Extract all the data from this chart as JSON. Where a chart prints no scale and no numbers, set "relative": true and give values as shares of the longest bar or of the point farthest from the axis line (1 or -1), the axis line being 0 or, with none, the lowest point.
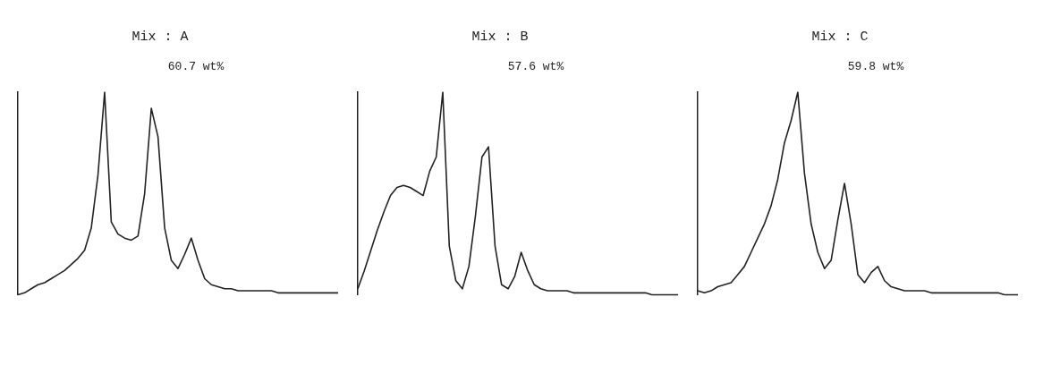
{
  "chart_data": [
    {
      "type": "line",
      "title": "Mix : A",
      "relative": true,
      "annotations": [
        "60.7 wt%"
      ],
      "marker": "none",
      "grid": false,
      "legend": false,
      "categories": [
        null,
        null,
        null,
        null,
        null,
        null,
        null,
        null,
        null,
        null,
        null,
        null,
        null,
        null,
        null,
        null,
        null,
        null,
        null,
        null,
        null,
        null,
        null,
        null,
        null,
        null,
        null,
        null,
        null,
        null,
        null,
        null,
        null,
        null,
        null,
        null,
        null,
        null,
        null,
        null,
        null,
        null,
        null,
        null,
        null,
        null,
        null,
        null,
        null
      ],
      "series": [
        {
          "color": "#222222",
          "values": [
            0,
            0.01,
            0.03,
            0.05,
            0.06,
            0.08,
            0.1,
            0.12,
            0.15,
            0.18,
            0.22,
            0.33,
            0.59,
            1,
            0.36,
            0.3,
            0.28,
            0.27,
            0.29,
            0.5,
            0.92,
            0.78,
            0.33,
            0.17,
            0.13,
            0.2,
            0.28,
            0.17,
            0.08,
            0.05,
            0.04,
            0.03,
            0.03,
            0.02,
            0.02,
            0.02,
            0.02,
            0.02,
            0.02,
            0.01,
            0.01,
            0.01,
            0.01,
            0.01,
            0.01,
            0.01,
            0.01,
            0.01,
            0.01
          ]
        }
      ]
    },
    {
      "type": "line",
      "title": "Mix : B",
      "relative": true,
      "annotations": [
        "57.6 wt%"
      ],
      "marker": "none",
      "grid": false,
      "legend": false,
      "categories": [
        null,
        null,
        null,
        null,
        null,
        null,
        null,
        null,
        null,
        null,
        null,
        null,
        null,
        null,
        null,
        null,
        null,
        null,
        null,
        null,
        null,
        null,
        null,
        null,
        null,
        null,
        null,
        null,
        null,
        null,
        null,
        null,
        null,
        null,
        null,
        null,
        null,
        null,
        null,
        null,
        null,
        null,
        null,
        null,
        null,
        null,
        null,
        null,
        null,
        null
      ],
      "series": [
        {
          "color": "#222222",
          "values": [
            0.03,
            0.12,
            0.22,
            0.32,
            0.41,
            0.49,
            0.53,
            0.54,
            0.53,
            0.51,
            0.49,
            0.61,
            0.68,
            1,
            0.24,
            0.07,
            0.03,
            0.14,
            0.39,
            0.68,
            0.73,
            0.24,
            0.05,
            0.03,
            0.09,
            0.21,
            0.12,
            0.05,
            0.03,
            0.02,
            0.02,
            0.02,
            0.02,
            0.01,
            0.01,
            0.01,
            0.01,
            0.01,
            0.01,
            0.01,
            0.01,
            0.01,
            0.01,
            0.01,
            0.01,
            0,
            0,
            0,
            0,
            0
          ]
        }
      ]
    },
    {
      "type": "line",
      "title": "Mix : C",
      "relative": true,
      "annotations": [
        "59.8 wt%"
      ],
      "marker": "none",
      "grid": false,
      "legend": false,
      "categories": [
        null,
        null,
        null,
        null,
        null,
        null,
        null,
        null,
        null,
        null,
        null,
        null,
        null,
        null,
        null,
        null,
        null,
        null,
        null,
        null,
        null,
        null,
        null,
        null,
        null,
        null,
        null,
        null,
        null,
        null,
        null,
        null,
        null,
        null,
        null,
        null,
        null,
        null,
        null,
        null,
        null,
        null,
        null,
        null,
        null,
        null,
        null,
        null,
        null
      ],
      "series": [
        {
          "color": "#222222",
          "values": [
            0.02,
            0.01,
            0.02,
            0.04,
            0.05,
            0.06,
            0.1,
            0.14,
            0.21,
            0.28,
            0.35,
            0.44,
            0.57,
            0.75,
            0.86,
            1,
            0.6,
            0.35,
            0.21,
            0.13,
            0.17,
            0.37,
            0.55,
            0.35,
            0.1,
            0.06,
            0.11,
            0.14,
            0.07,
            0.04,
            0.03,
            0.02,
            0.02,
            0.02,
            0.02,
            0.01,
            0.01,
            0.01,
            0.01,
            0.01,
            0.01,
            0.01,
            0.01,
            0.01,
            0.01,
            0.01,
            0,
            0,
            0
          ]
        }
      ]
    }
  ]
}
